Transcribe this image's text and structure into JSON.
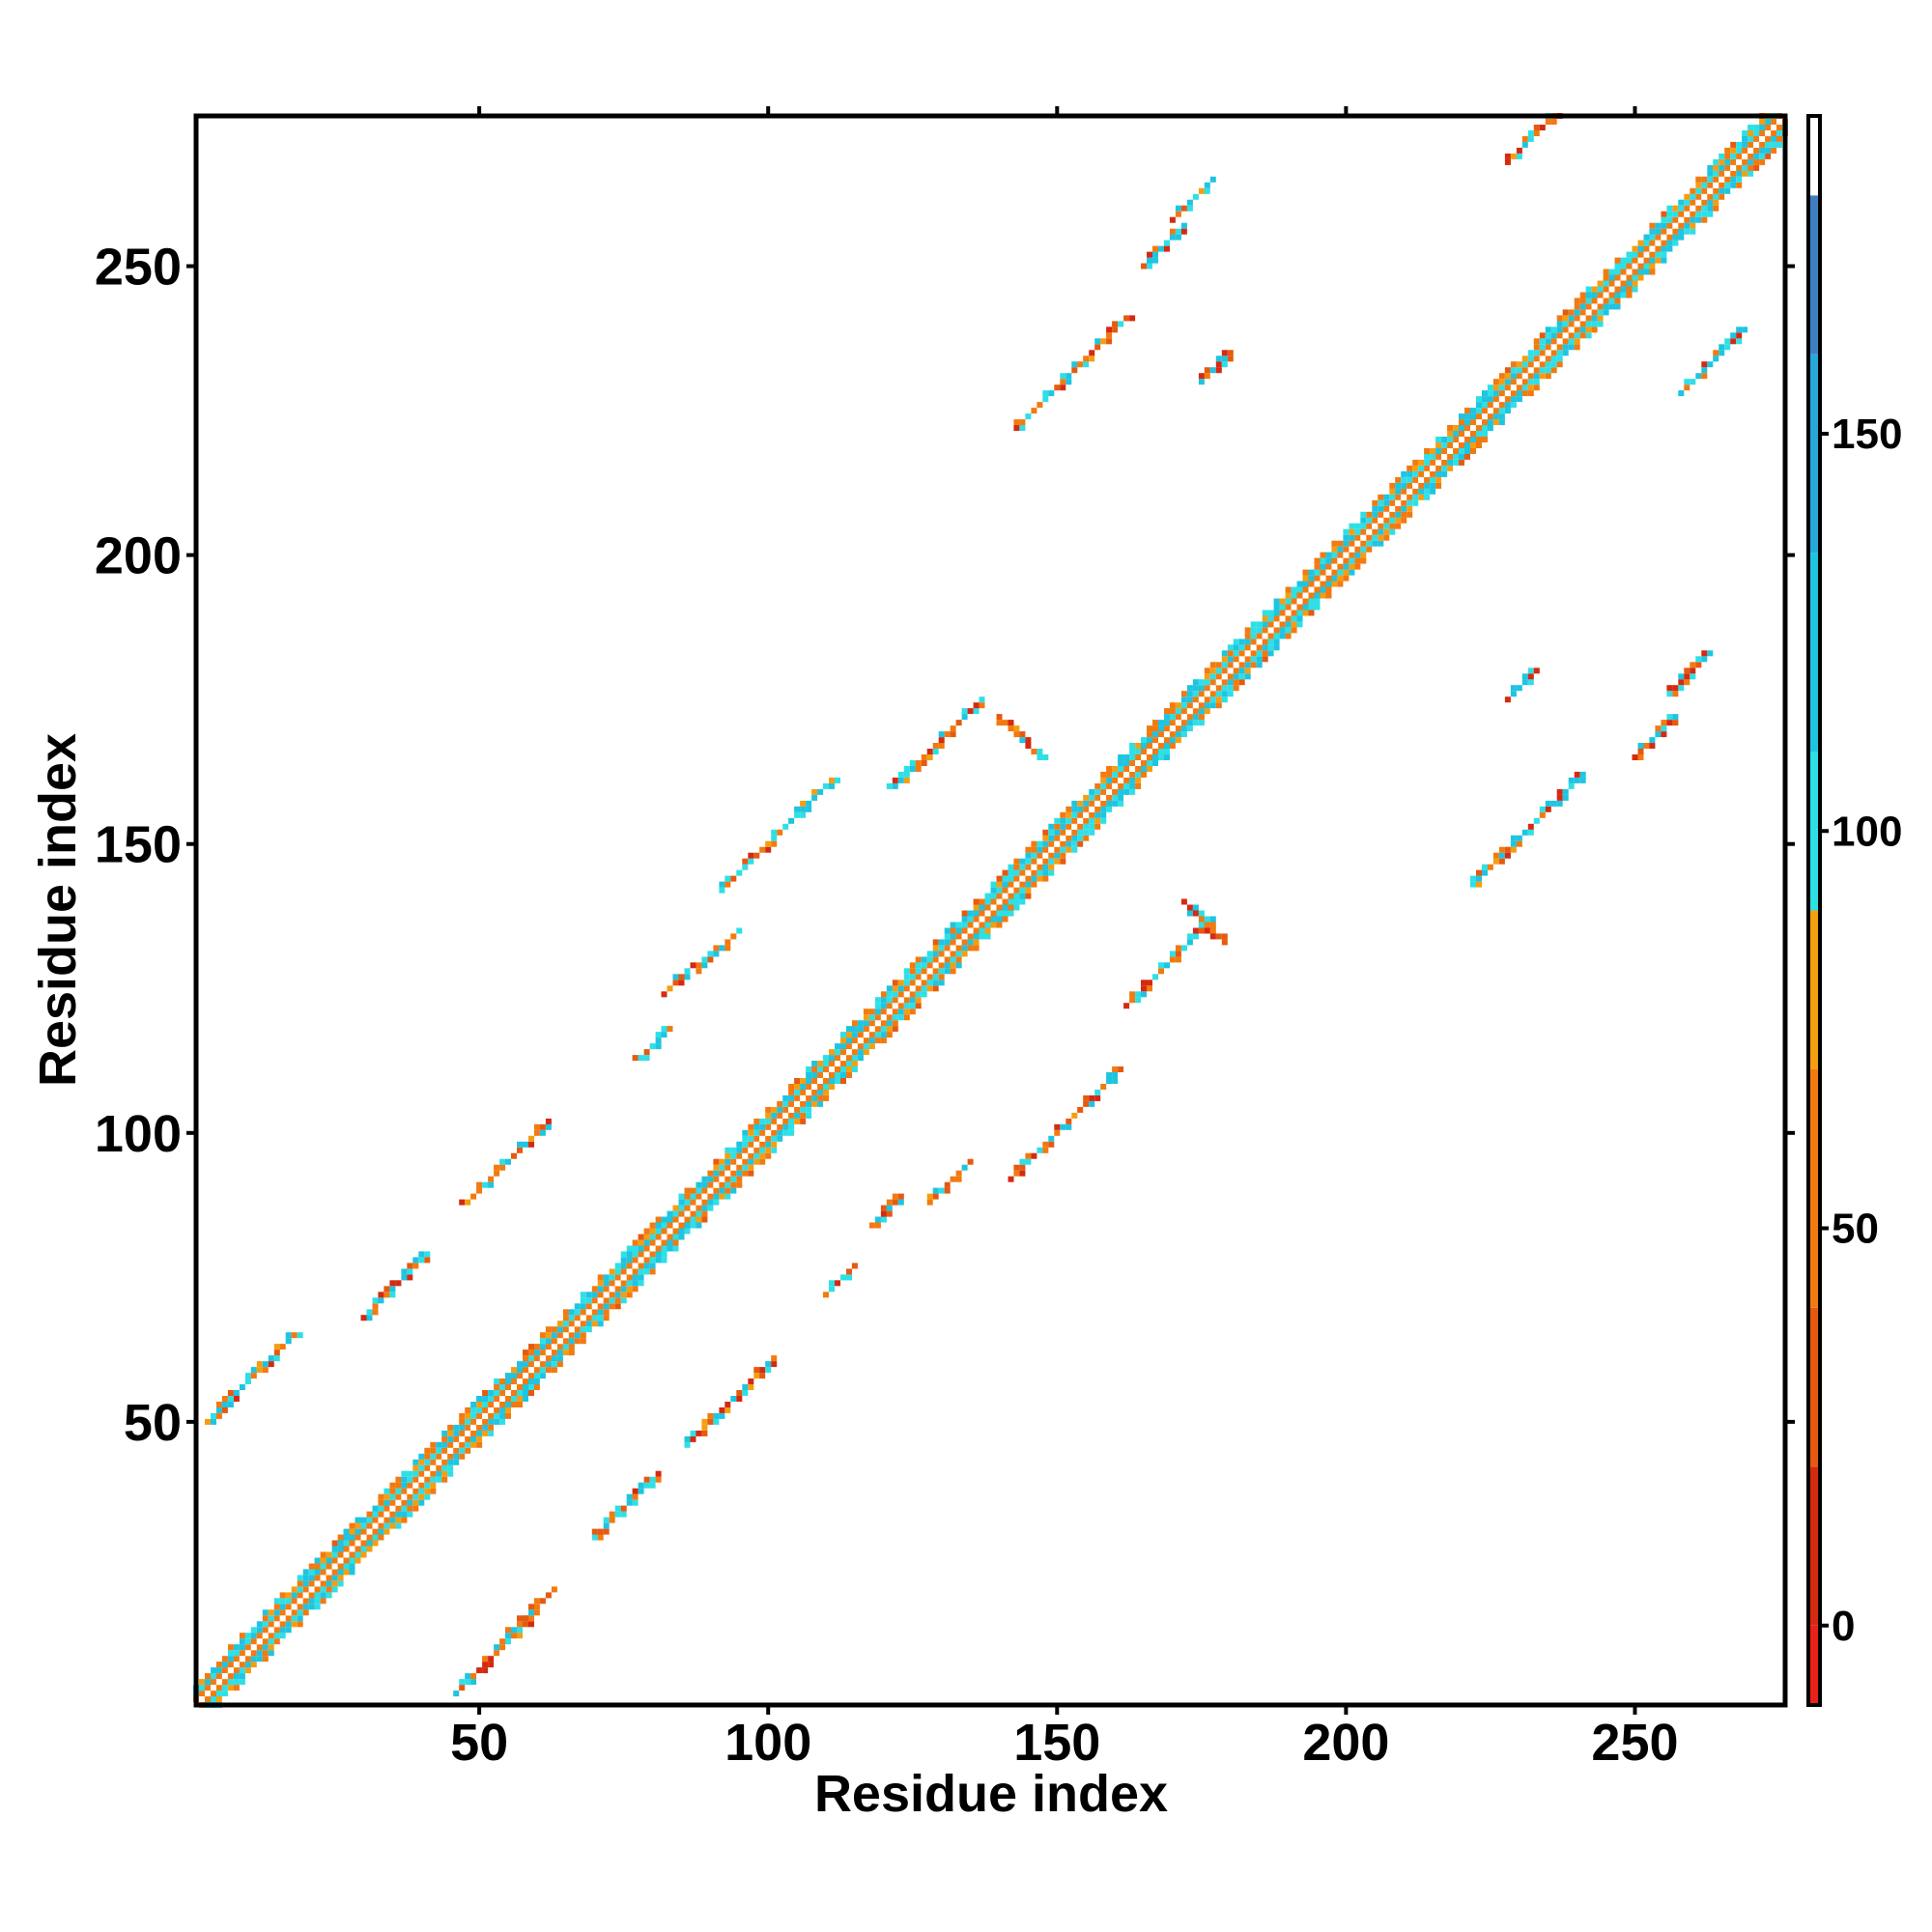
{
  "chart_data": {
    "type": "heatmap",
    "title": "",
    "xlabel": "Residue index",
    "ylabel": "Residue index",
    "xlim": [
      1,
      276
    ],
    "ylim": [
      1,
      276
    ],
    "xticks": [
      50,
      100,
      150,
      200,
      250
    ],
    "yticks": [
      50,
      100,
      150,
      200,
      250
    ],
    "grid": false,
    "legend": "none",
    "colorbar": {
      "position": "right",
      "range": [
        -10,
        190
      ],
      "ticks": [
        0,
        50,
        100,
        150
      ],
      "bands": [
        {
          "from": -10,
          "to": 0,
          "color": "#e8221a"
        },
        {
          "from": 0,
          "to": 20,
          "color": "#d42a12"
        },
        {
          "from": 20,
          "to": 40,
          "color": "#e55a10"
        },
        {
          "from": 40,
          "to": 70,
          "color": "#f27a10"
        },
        {
          "from": 70,
          "to": 90,
          "color": "#f59e10"
        },
        {
          "from": 90,
          "to": 110,
          "color": "#2fdfe6"
        },
        {
          "from": 110,
          "to": 135,
          "color": "#1fc4e0"
        },
        {
          "from": 135,
          "to": 160,
          "color": "#25a9d8"
        },
        {
          "from": 160,
          "to": 180,
          "color": "#3f7fc0"
        },
        {
          "from": 180,
          "to": 190,
          "color": "#ffffff"
        }
      ]
    },
    "diagonal": {
      "from": 1,
      "to": 276,
      "band_halfwidth": 4
    },
    "clusters": [
      {
        "i0": 3,
        "j0": 50,
        "len": 16,
        "dir": 1
      },
      {
        "i0": 30,
        "j0": 68,
        "len": 12,
        "dir": 1
      },
      {
        "i0": 48,
        "j0": 88,
        "len": 15,
        "dir": 1
      },
      {
        "i0": 78,
        "j0": 113,
        "len": 6,
        "dir": 1
      },
      {
        "i0": 82,
        "j0": 124,
        "len": 6,
        "dir": 1
      },
      {
        "i0": 88,
        "j0": 128,
        "len": 8,
        "dir": 1
      },
      {
        "i0": 92,
        "j0": 142,
        "len": 20,
        "dir": 1
      },
      {
        "i0": 122,
        "j0": 160,
        "len": 16,
        "dir": 1
      },
      {
        "i0": 140,
        "j0": 172,
        "len": 8,
        "dir": -1
      },
      {
        "i0": 143,
        "j0": 222,
        "len": 20,
        "dir": 1
      },
      {
        "i0": 165,
        "j0": 250,
        "len": 8,
        "dir": 1
      },
      {
        "i0": 170,
        "j0": 258,
        "len": 8,
        "dir": 1
      },
      {
        "i0": 175,
        "j0": 230,
        "len": 6,
        "dir": 1
      },
      {
        "i0": 228,
        "j0": 268,
        "len": 10,
        "dir": 1
      },
      {
        "i0": 46,
        "j0": 3,
        "len": 14,
        "dir": 1
      },
      {
        "i0": 56,
        "j0": 14,
        "len": 8,
        "dir": 1
      },
      {
        "i0": 70,
        "j0": 30,
        "len": 12,
        "dir": 1
      },
      {
        "i0": 86,
        "j0": 46,
        "len": 16,
        "dir": 1
      },
      {
        "i0": 110,
        "j0": 72,
        "len": 6,
        "dir": 1
      },
      {
        "i0": 118,
        "j0": 84,
        "len": 6,
        "dir": 1
      },
      {
        "i0": 128,
        "j0": 88,
        "len": 8,
        "dir": 1
      },
      {
        "i0": 142,
        "j0": 92,
        "len": 20,
        "dir": 1
      },
      {
        "i0": 162,
        "j0": 122,
        "len": 16,
        "dir": 1
      },
      {
        "i0": 172,
        "j0": 140,
        "len": 8,
        "dir": -1
      },
      {
        "i0": 222,
        "j0": 143,
        "len": 20,
        "dir": 1
      },
      {
        "i0": 250,
        "j0": 165,
        "len": 8,
        "dir": 1
      },
      {
        "i0": 256,
        "j0": 176,
        "len": 8,
        "dir": 1
      },
      {
        "i0": 228,
        "j0": 175,
        "len": 6,
        "dir": 1
      },
      {
        "i0": 258,
        "j0": 228,
        "len": 12,
        "dir": 1
      }
    ]
  }
}
